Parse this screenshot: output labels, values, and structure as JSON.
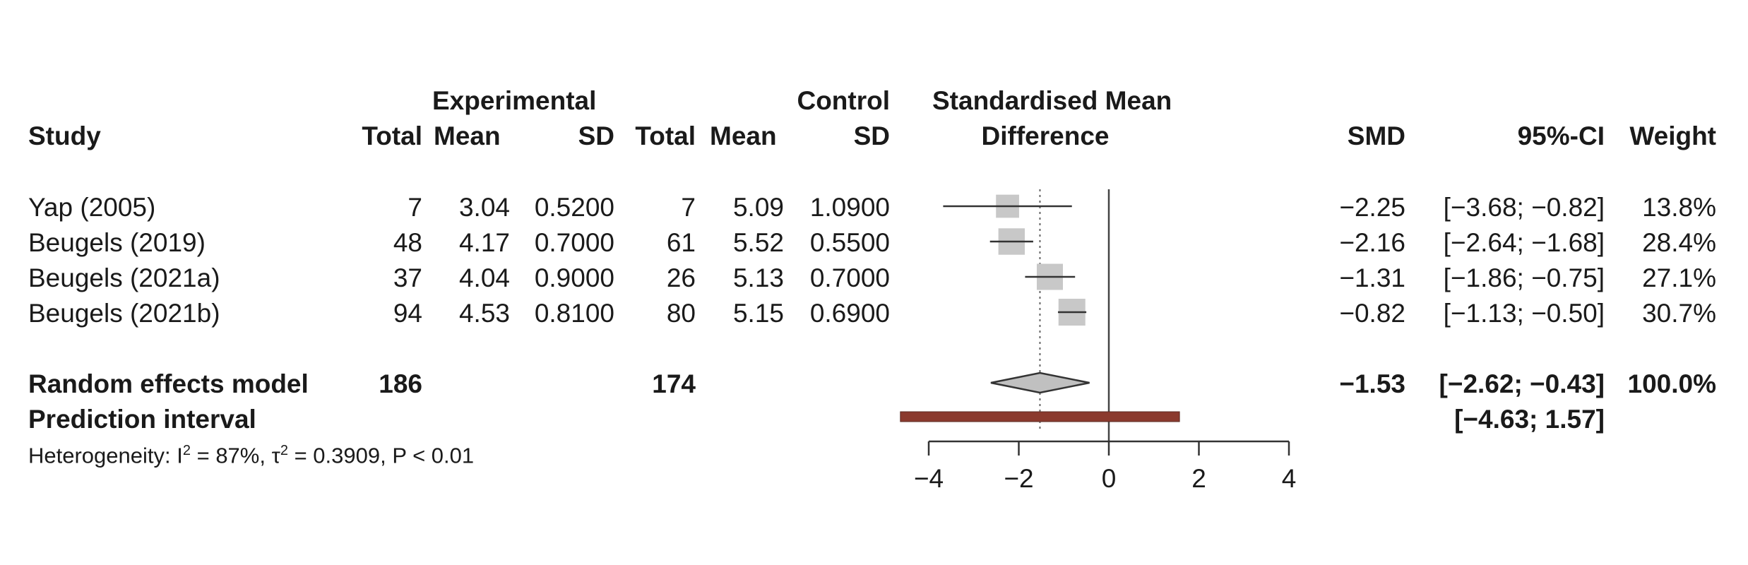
{
  "headers": {
    "study": "Study",
    "experimental": "Experimental",
    "control": "Control",
    "exp_total": "Total",
    "exp_mean": "Mean",
    "exp_sd": "SD",
    "ctl_total": "Total",
    "ctl_mean": "Mean",
    "ctl_sd": "SD",
    "smd_line1": "Standardised Mean",
    "smd_line2": "Difference",
    "smd": "SMD",
    "ci": "95%-CI",
    "weight": "Weight"
  },
  "rows": [
    {
      "study": "Yap (2005)",
      "exp_total": "7",
      "exp_mean": "3.04",
      "exp_sd": "0.5200",
      "ctl_total": "7",
      "ctl_mean": "5.09",
      "ctl_sd": "1.0900",
      "smd": "−2.25",
      "ci": "[−3.68; −0.82]",
      "weight": "13.8%"
    },
    {
      "study": "Beugels (2019)",
      "exp_total": "48",
      "exp_mean": "4.17",
      "exp_sd": "0.7000",
      "ctl_total": "61",
      "ctl_mean": "5.52",
      "ctl_sd": "0.5500",
      "smd": "−2.16",
      "ci": "[−2.64; −1.68]",
      "weight": "28.4%"
    },
    {
      "study": "Beugels (2021a)",
      "exp_total": "37",
      "exp_mean": "4.04",
      "exp_sd": "0.9000",
      "ctl_total": "26",
      "ctl_mean": "5.13",
      "ctl_sd": "0.7000",
      "smd": "−1.31",
      "ci": "[−1.86; −0.75]",
      "weight": "27.1%"
    },
    {
      "study": "Beugels (2021b)",
      "exp_total": "94",
      "exp_mean": "4.53",
      "exp_sd": "0.8100",
      "ctl_total": "80",
      "ctl_mean": "5.15",
      "ctl_sd": "0.6900",
      "smd": "−0.82",
      "ci": "[−1.13; −0.50]",
      "weight": "30.7%"
    }
  ],
  "summary": {
    "label": "Random effects model",
    "exp_total": "186",
    "ctl_total": "174",
    "smd": "−1.53",
    "ci": "[−2.62; −0.43]",
    "weight": "100.0%"
  },
  "prediction": {
    "label": "Prediction interval",
    "ci": "[−4.63;  1.57]"
  },
  "heterogeneity": {
    "prefix": "Heterogeneity: I",
    "i2_sup": "2",
    "i2_value": " = 87%, τ",
    "tau_sup": "2",
    "rest": " = 0.3909, P < 0.01"
  },
  "chart_data": {
    "type": "forest",
    "xlim": [
      -4,
      4
    ],
    "ticks": [
      -4,
      -2,
      0,
      2,
      4
    ],
    "tick_labels": [
      "−4",
      "−2",
      "0",
      "2",
      "4"
    ],
    "null_line": 0,
    "studies": [
      {
        "est": -2.25,
        "lo": -3.68,
        "hi": -0.82,
        "weight": 13.8
      },
      {
        "est": -2.16,
        "lo": -2.64,
        "hi": -1.68,
        "weight": 28.4
      },
      {
        "est": -1.31,
        "lo": -1.86,
        "hi": -0.75,
        "weight": 27.1
      },
      {
        "est": -0.82,
        "lo": -1.13,
        "hi": -0.5,
        "weight": 30.7
      }
    ],
    "summary": {
      "est": -1.53,
      "lo": -2.62,
      "hi": -0.43
    },
    "prediction": {
      "lo": -4.63,
      "hi": 1.57
    },
    "colors": {
      "box": "#c8c8c8",
      "line": "#333333",
      "diamond": "#c0c0c0",
      "prediction": "#8b3a2e",
      "dotted": "#666666"
    }
  }
}
